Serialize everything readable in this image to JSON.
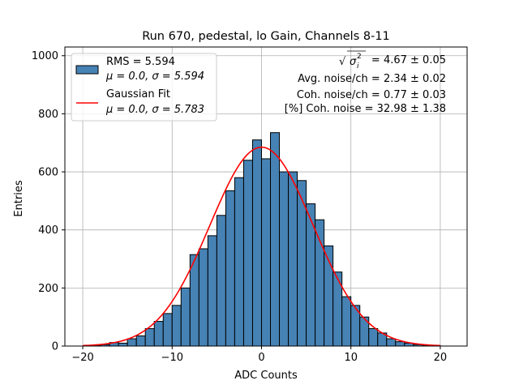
{
  "chart_data": {
    "type": "bar",
    "title": "Run 670, pedestal, lo Gain, Channels 8-11",
    "xlabel": "ADC Counts",
    "ylabel": "Entries",
    "xlim": [
      -22,
      23
    ],
    "ylim": [
      0,
      1030
    ],
    "x_ticks": [
      -20,
      -10,
      0,
      10,
      20
    ],
    "x_tick_labels": [
      "−20",
      "−10",
      "0",
      "10",
      "20"
    ],
    "y_ticks": [
      0,
      200,
      400,
      600,
      800,
      1000
    ],
    "y_tick_labels": [
      "0",
      "200",
      "400",
      "600",
      "800",
      "1000"
    ],
    "grid": true,
    "legend_position": "top-left",
    "colors": {
      "histogram": "#4682b4",
      "fit": "#ff0000",
      "edge": "#000000",
      "grid": "#b0b0b0"
    },
    "histogram": {
      "name": "RMS = 5.594",
      "name_line2": "μ = 0.0, σ = 5.594",
      "bin_edges": [
        -20,
        -19,
        -18,
        -17,
        -16,
        -15,
        -14,
        -13,
        -12,
        -11,
        -10,
        -9,
        -8,
        -7,
        -6,
        -5,
        -4,
        -3,
        -2,
        -1,
        0,
        1,
        2,
        3,
        4,
        5,
        6,
        7,
        8,
        9,
        10,
        11,
        12,
        13,
        14,
        15,
        16,
        17,
        18,
        19,
        20,
        21
      ],
      "counts": [
        0,
        2,
        5,
        12,
        10,
        25,
        35,
        60,
        85,
        112,
        140,
        200,
        315,
        335,
        380,
        450,
        535,
        580,
        640,
        710,
        645,
        735,
        600,
        600,
        570,
        490,
        435,
        345,
        255,
        170,
        140,
        100,
        60,
        45,
        25,
        15,
        10,
        5,
        3,
        2,
        0
      ]
    },
    "fit": {
      "name": "Gaussian Fit",
      "name_line2": "μ = 0.0, σ = 5.783",
      "mu": 0.0,
      "sigma": 5.783,
      "amplitude": 685,
      "x_range": [
        -20,
        20
      ]
    },
    "annotations": [
      {
        "prefix": "√",
        "body": "σ",
        "sup": "2",
        "sub": "i",
        "rest": " = 4.67 ± 0.05"
      },
      {
        "text": "Avg. noise/ch = 2.34 ± 0.02"
      },
      {
        "text": "Coh. noise/ch = 0.77 ± 0.03"
      },
      {
        "text": "[%] Coh. noise = 32.98 ± 1.38"
      }
    ]
  }
}
